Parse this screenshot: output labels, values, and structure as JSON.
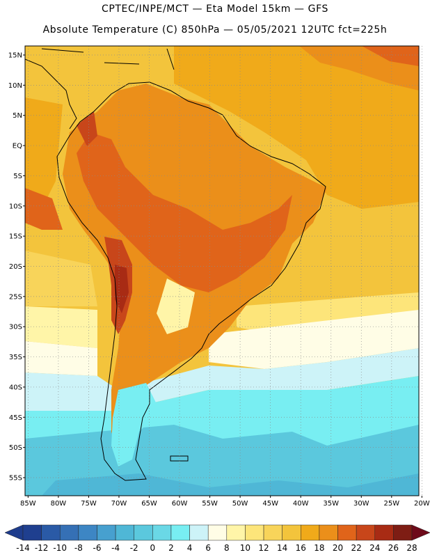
{
  "header": {
    "title_line1": "CPTEC/INPE/MCT —  Eta Model 15km — GFS",
    "title_line2": "Absolute Temperature (C) 850hPa — 05/05/2021 12UTC fct=225h"
  },
  "axes": {
    "lat_labels": [
      "15N",
      "10N",
      "5N",
      "EQ",
      "5S",
      "10S",
      "15S",
      "20S",
      "25S",
      "30S",
      "35S",
      "40S",
      "45S",
      "50S",
      "55S"
    ],
    "lat_values": [
      15,
      10,
      5,
      0,
      -5,
      -10,
      -15,
      -20,
      -25,
      -30,
      -35,
      -40,
      -45,
      -50,
      -55
    ],
    "lon_labels": [
      "85W",
      "80W",
      "75W",
      "70W",
      "65W",
      "60W",
      "55W",
      "50W",
      "45W",
      "40W",
      "35W",
      "30W",
      "25W",
      "20W"
    ],
    "lon_values": [
      -85,
      -80,
      -75,
      -70,
      -65,
      -60,
      -55,
      -50,
      -45,
      -40,
      -35,
      -30,
      -25,
      -20
    ],
    "lon_range": [
      -85.5,
      -20.5
    ],
    "lat_range": [
      -58,
      16.5
    ],
    "grid": "dotted"
  },
  "colorbar": {
    "labels": [
      "-14",
      "-12",
      "-10",
      "-8",
      "-6",
      "-4",
      "-2",
      "0",
      "2",
      "4",
      "6",
      "8",
      "10",
      "12",
      "14",
      "16",
      "18",
      "20",
      "22",
      "24",
      "26",
      "28"
    ],
    "low_color": "#1e3c8c",
    "high_color": "#6e0a1a",
    "colors": [
      "#1f3f8f",
      "#2a5aa6",
      "#3570b5",
      "#3d86c4",
      "#47a0cf",
      "#4fb7d6",
      "#5bc8dd",
      "#6ad8e6",
      "#78eef2",
      "#cdf3f8",
      "#fffde6",
      "#fff5a8",
      "#fde57a",
      "#f8d45a",
      "#f3c43c",
      "#f0aa1a",
      "#eb8f1a",
      "#e0641a",
      "#c8461a",
      "#a82b14",
      "#7e1d14"
    ]
  },
  "field_colors": {
    "ocean_ne": "#f0aa1a",
    "ocean_mid": "#f3c43c",
    "ocean_warm_band": "#f8d45a",
    "ocean_cool_band": "#fffde6",
    "ocean_cold": "#5bc8dd",
    "ocean_cyan": "#78eef2",
    "land_warm": "#eb8f1a",
    "land_hot": "#e0641a",
    "andes": "#c8461a",
    "andes_peak": "#a82b14",
    "patagonia": "#78eef2"
  }
}
